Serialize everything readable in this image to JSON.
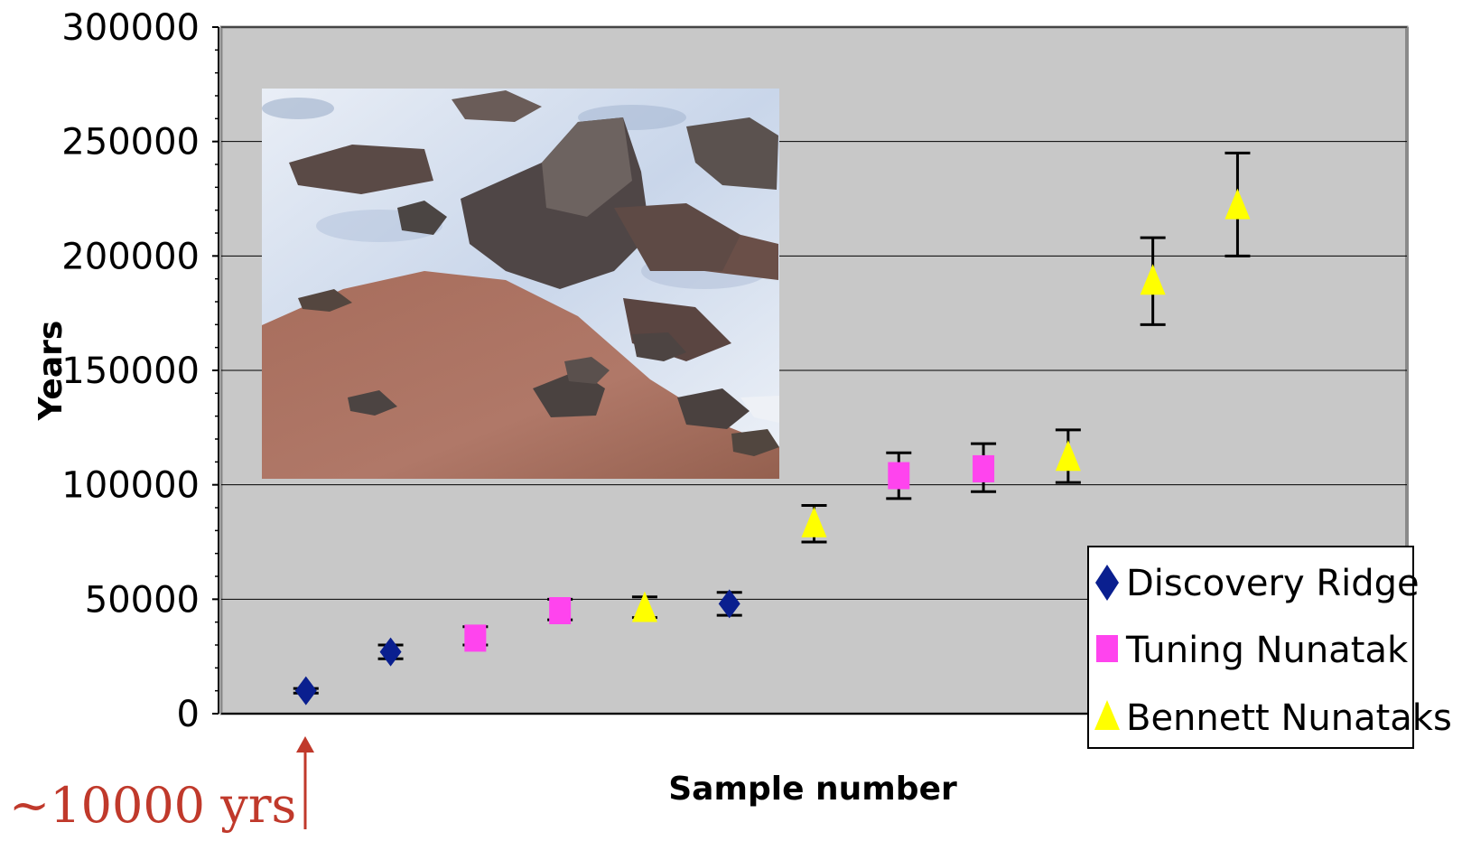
{
  "chart_data": {
    "type": "scatter",
    "xlabel": "Sample number",
    "ylabel": "Years",
    "ylim": [
      0,
      300000
    ],
    "xlim": [
      0,
      14
    ],
    "y_ticks": [
      "0",
      "50000",
      "100000",
      "150000",
      "200000",
      "250000",
      "300000"
    ],
    "grid": true,
    "legend_position": "bottom-right",
    "series": [
      {
        "name": "Discovery Ridge",
        "marker": "diamond",
        "color": "#0a1f8f",
        "points": [
          {
            "x": 1,
            "y": 10000,
            "err_low": 9000,
            "err_high": 11000
          },
          {
            "x": 2,
            "y": 27000,
            "err_low": 24000,
            "err_high": 30000
          },
          {
            "x": 6,
            "y": 48000,
            "err_low": 43000,
            "err_high": 53000
          }
        ]
      },
      {
        "name": "Tuning Nunatak",
        "marker": "square",
        "color": "#ff44ee",
        "points": [
          {
            "x": 3,
            "y": 33000,
            "err_low": 30000,
            "err_high": 38000
          },
          {
            "x": 4,
            "y": 45000,
            "err_low": 41000,
            "err_high": 50000
          },
          {
            "x": 8,
            "y": 104000,
            "err_low": 94000,
            "err_high": 114000
          },
          {
            "x": 9,
            "y": 107000,
            "err_low": 97000,
            "err_high": 118000
          }
        ]
      },
      {
        "name": "Bennett Nunataks",
        "marker": "triangle",
        "color": "#ffff00",
        "points": [
          {
            "x": 5,
            "y": 46000,
            "err_low": 42000,
            "err_high": 51000
          },
          {
            "x": 7,
            "y": 83000,
            "err_low": 75000,
            "err_high": 91000
          },
          {
            "x": 10,
            "y": 112000,
            "err_low": 101000,
            "err_high": 124000
          },
          {
            "x": 11,
            "y": 189000,
            "err_low": 170000,
            "err_high": 208000
          },
          {
            "x": 12,
            "y": 222000,
            "err_low": 200000,
            "err_high": 245000
          }
        ]
      }
    ],
    "annotation": {
      "text": "~10000 yrs",
      "color": "#c0392b",
      "target_x": 1
    },
    "inset_photo": {
      "subject": "rock boulders on a reddish slope with snow patches"
    }
  },
  "colors": {
    "plot_background": "#c8c8c8",
    "gridline": "#000000"
  }
}
